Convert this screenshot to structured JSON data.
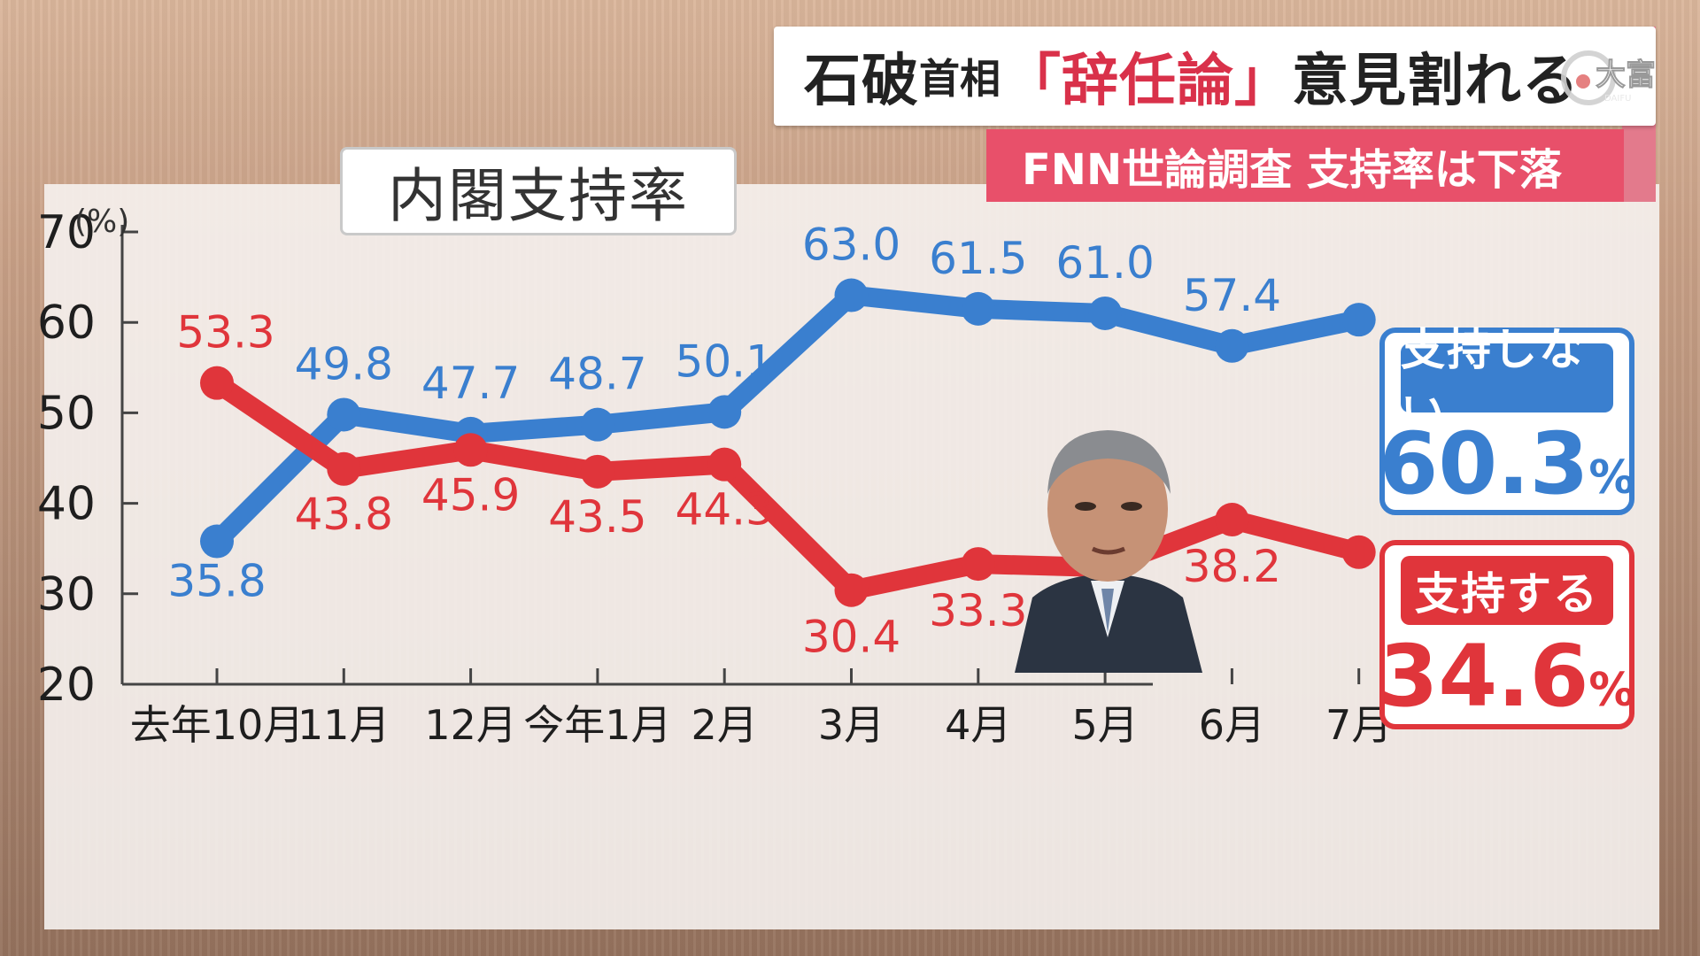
{
  "headline": {
    "name": "石破",
    "title_suffix": "首相",
    "quote": "「辞任論」",
    "rest": "意見割れる"
  },
  "subheadline": "FNN世論調査 支持率は下落",
  "logo_text": "大富",
  "logo_subtext": "DAIFU",
  "colors": {
    "not_support": "#3a7fcf",
    "support": "#e0353b",
    "accent_pink": "#e8506a"
  },
  "chart_data": {
    "type": "line",
    "title": "内閣支持率",
    "ylabel": "(%)",
    "ylim": [
      20,
      70
    ],
    "yticks": [
      70,
      60,
      50,
      40,
      30,
      20
    ],
    "categories": [
      "去年10月",
      "11月",
      "12月",
      "今年1月",
      "2月",
      "3月",
      "4月",
      "5月",
      "6月",
      "7月"
    ],
    "series": [
      {
        "name": "支持しない",
        "color": "#3a7fcf",
        "values": [
          35.8,
          49.8,
          47.7,
          48.7,
          50.1,
          63.0,
          61.5,
          61.0,
          57.4,
          60.3
        ],
        "labels": [
          "35.8",
          "49.8",
          "47.7",
          "48.7",
          "50.1",
          "63.0",
          "61.5",
          "61.0",
          "57.4",
          ""
        ]
      },
      {
        "name": "支持する",
        "color": "#e0353b",
        "values": [
          53.3,
          43.8,
          45.9,
          43.5,
          44.3,
          30.4,
          33.3,
          32.9,
          38.2,
          34.6
        ],
        "labels": [
          "53.3",
          "43.8",
          "45.9",
          "43.5",
          "44.3",
          "30.4",
          "33.3",
          "32.9",
          "38.2",
          ""
        ]
      }
    ],
    "legend": [
      {
        "label": "支持しない",
        "value": "60.3",
        "unit": "%"
      },
      {
        "label": "支持する",
        "value": "34.6",
        "unit": "%"
      }
    ],
    "grid": false
  }
}
